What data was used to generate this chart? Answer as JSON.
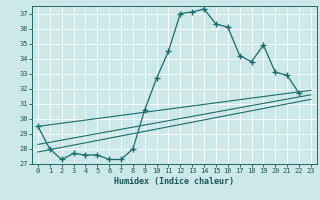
{
  "xlabel": "Humidex (Indice chaleur)",
  "bg_color": "#cde8e8",
  "line_color": "#1a6b6b",
  "xlim": [
    -0.5,
    23.5
  ],
  "ylim": [
    27.0,
    37.5
  ],
  "yticks": [
    27,
    28,
    29,
    30,
    31,
    32,
    33,
    34,
    35,
    36,
    37
  ],
  "xticks": [
    0,
    1,
    2,
    3,
    4,
    5,
    6,
    7,
    8,
    9,
    10,
    11,
    12,
    13,
    14,
    15,
    16,
    17,
    18,
    19,
    20,
    21,
    22,
    23
  ],
  "series1_x": [
    0,
    1,
    2,
    3,
    4,
    5,
    6,
    7,
    8,
    9,
    10,
    11,
    12,
    13,
    14,
    15,
    16,
    17,
    18,
    19,
    20,
    21,
    22
  ],
  "series1_y": [
    29.5,
    28.0,
    27.3,
    27.7,
    27.6,
    27.6,
    27.3,
    27.3,
    28.0,
    30.6,
    32.7,
    34.5,
    37.0,
    37.1,
    37.3,
    36.3,
    36.1,
    34.2,
    33.8,
    34.9,
    33.1,
    32.9,
    31.7
  ],
  "line2_x": [
    0,
    23
  ],
  "line2_y": [
    28.3,
    31.6
  ],
  "line3_x": [
    0,
    23
  ],
  "line3_y": [
    29.5,
    31.9
  ],
  "line4_x": [
    0,
    23
  ],
  "line4_y": [
    27.8,
    31.3
  ]
}
